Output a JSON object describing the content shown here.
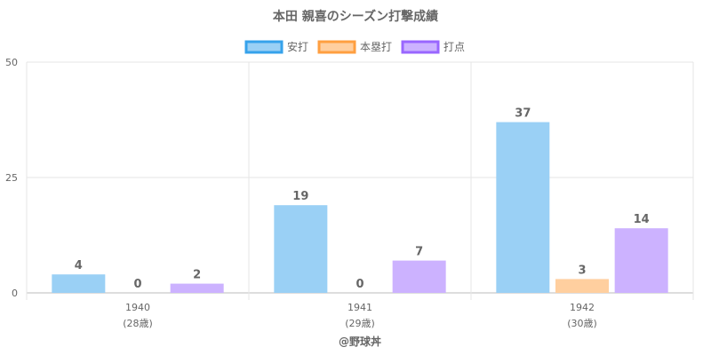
{
  "chart_data": {
    "type": "bar",
    "title": "本田 親喜のシーズン打撃成績",
    "categories": [
      {
        "year": "1940",
        "age": "(28歳)"
      },
      {
        "year": "1941",
        "age": "(29歳)"
      },
      {
        "year": "1942",
        "age": "(30歳)"
      }
    ],
    "series": [
      {
        "name": "安打",
        "values": [
          4,
          19,
          37
        ],
        "color": "#9ad0f5",
        "border": "#36a2eb"
      },
      {
        "name": "本塁打",
        "values": [
          0,
          0,
          3
        ],
        "color": "#ffcf9f",
        "border": "#ff9f40"
      },
      {
        "name": "打点",
        "values": [
          2,
          7,
          14
        ],
        "color": "#ccb2ff",
        "border": "#9966ff"
      }
    ],
    "ylim": [
      0,
      50
    ],
    "yticks": [
      0,
      25,
      50
    ],
    "grid": true,
    "legend": "top-center",
    "credit": "@野球丼"
  }
}
